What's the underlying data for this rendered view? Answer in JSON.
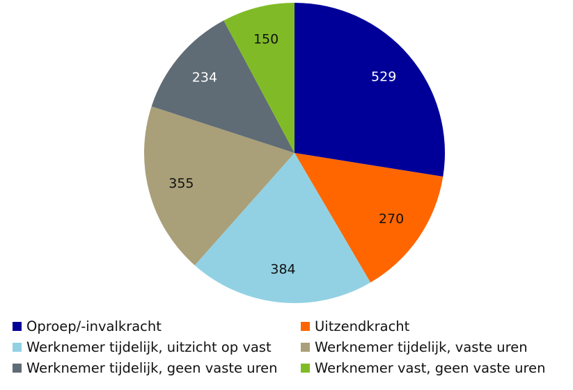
{
  "chart_data": {
    "type": "pie",
    "title": "",
    "categories": [
      "Oproep/-invalkracht",
      "Uitzendkracht",
      "Werknemer tijdelijk, uitzicht op vast",
      "Werknemer tijdelijk, vaste uren",
      "Werknemer tijdelijk, geen vaste uren",
      "Werknemer vast, geen vaste uren"
    ],
    "values": [
      529,
      270,
      384,
      355,
      234,
      150
    ],
    "colors": [
      "#000099",
      "#ff6600",
      "#92d1e3",
      "#a99f79",
      "#5f6b75",
      "#80bb27"
    ],
    "label_colors": [
      "#ffffff",
      "#111111",
      "#111111",
      "#111111",
      "#ffffff",
      "#111111"
    ],
    "start_angle_deg": 0,
    "direction": "clockwise",
    "legend_position": "bottom",
    "data_labels": true
  }
}
